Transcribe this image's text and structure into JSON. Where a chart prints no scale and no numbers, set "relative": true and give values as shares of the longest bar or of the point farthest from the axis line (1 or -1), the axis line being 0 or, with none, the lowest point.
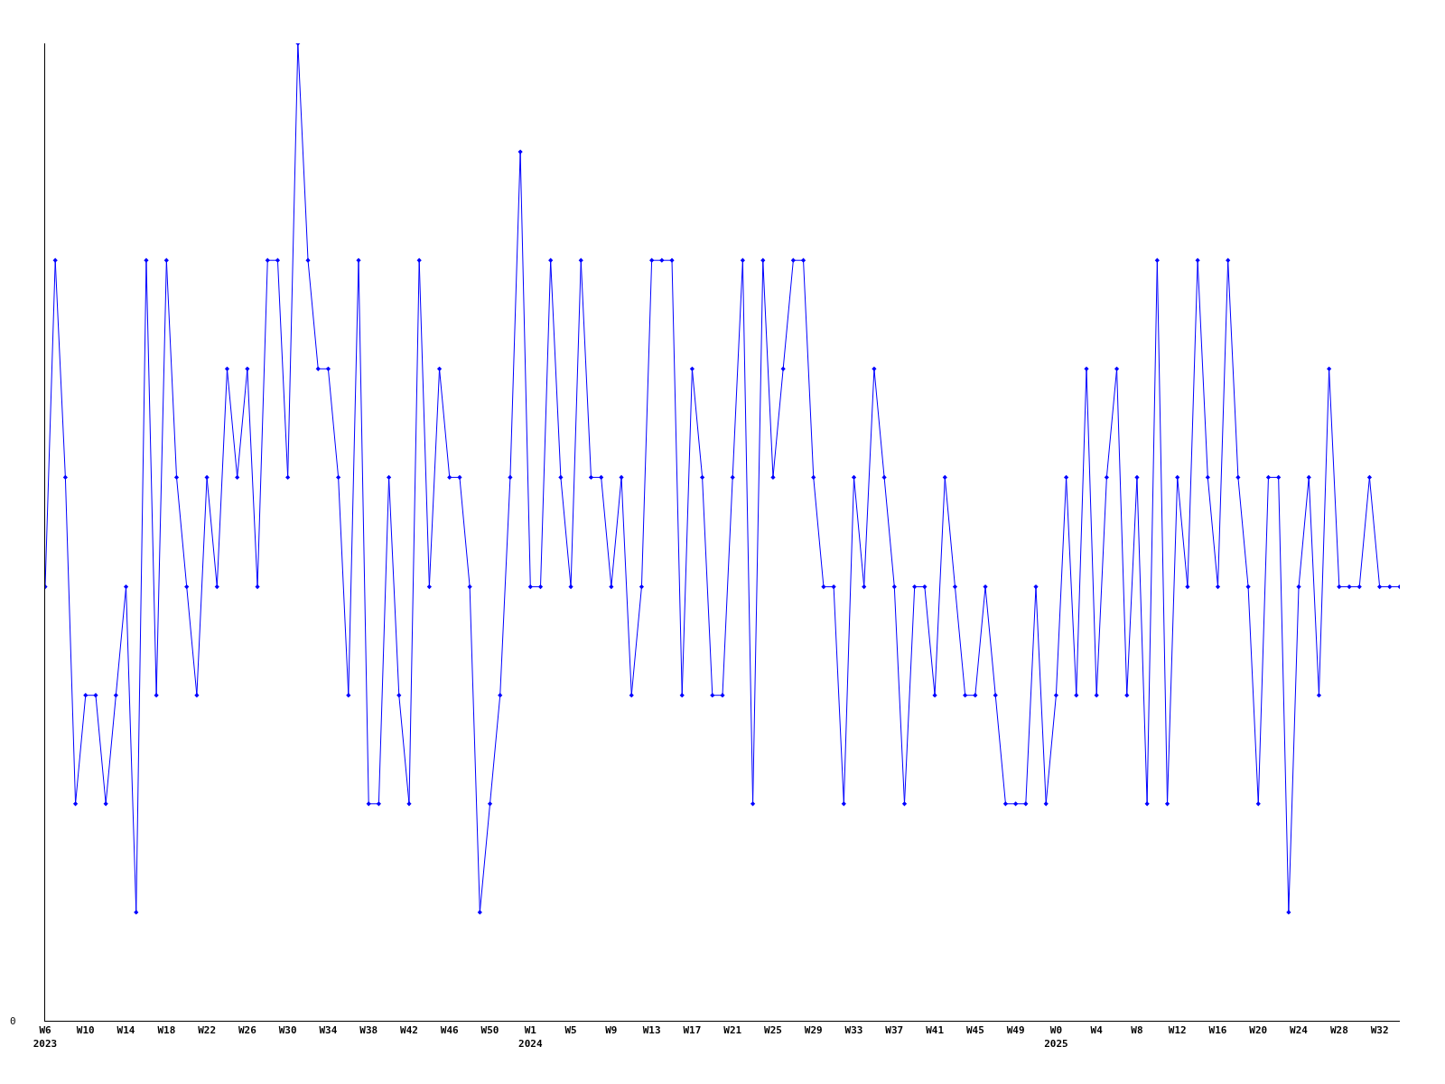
{
  "chart_data": {
    "type": "line",
    "relative": true,
    "marker": "diamond",
    "annotations": [
      "0"
    ],
    "categories": [
      "W6\n2023",
      null,
      null,
      null,
      "W10",
      null,
      null,
      null,
      "W14",
      null,
      null,
      null,
      "W18",
      null,
      null,
      null,
      "W22",
      null,
      null,
      null,
      "W26",
      null,
      null,
      null,
      "W30",
      null,
      null,
      null,
      "W34",
      null,
      null,
      null,
      "W38",
      null,
      null,
      null,
      "W42",
      null,
      null,
      null,
      "W46",
      null,
      null,
      null,
      "W50",
      null,
      null,
      null,
      "W1\n2024",
      null,
      null,
      null,
      "W5",
      null,
      null,
      null,
      "W9",
      null,
      null,
      null,
      "W13",
      null,
      null,
      null,
      "W17",
      null,
      null,
      null,
      "W21",
      null,
      null,
      null,
      "W25",
      null,
      null,
      null,
      "W29",
      null,
      null,
      null,
      "W33",
      null,
      null,
      null,
      "W37",
      null,
      null,
      null,
      "W41",
      null,
      null,
      null,
      "W45",
      null,
      null,
      null,
      "W49",
      null,
      null,
      null,
      "W0\n2025",
      null,
      null,
      null,
      "W4",
      null,
      null,
      null,
      "W8",
      null,
      null,
      null,
      "W12",
      null,
      null,
      null,
      "W16",
      null,
      null,
      null,
      "W20",
      null,
      null,
      null,
      "W24",
      null,
      null,
      null,
      "W28",
      null,
      null,
      null,
      "W32",
      null,
      null
    ],
    "series": [
      {
        "color": "#0000ff",
        "values": [
          0.444,
          0.778,
          0.556,
          0.222,
          0.333,
          0.333,
          0.222,
          0.333,
          0.444,
          0.111,
          0.778,
          0.333,
          0.778,
          0.556,
          0.444,
          0.333,
          0.556,
          0.444,
          0.667,
          0.556,
          0.667,
          0.444,
          0.778,
          0.778,
          0.556,
          1,
          0.778,
          0.667,
          0.667,
          0.556,
          0.333,
          0.778,
          0.222,
          0.222,
          0.556,
          0.333,
          0.222,
          0.778,
          0.444,
          0.667,
          0.556,
          0.556,
          0.444,
          0.111,
          0.222,
          0.333,
          0.556,
          0.889,
          0.444,
          0.444,
          0.778,
          0.556,
          0.444,
          0.778,
          0.556,
          0.556,
          0.444,
          0.556,
          0.333,
          0.444,
          0.778,
          0.778,
          0.778,
          0.333,
          0.667,
          0.556,
          0.333,
          0.333,
          0.556,
          0.778,
          0.222,
          0.778,
          0.556,
          0.667,
          0.778,
          0.778,
          0.556,
          0.444,
          0.444,
          0.222,
          0.556,
          0.444,
          0.667,
          0.556,
          0.444,
          0.222,
          0.444,
          0.444,
          0.333,
          0.556,
          0.444,
          0.333,
          0.333,
          0.444,
          0.333,
          0.222,
          0.222,
          0.222,
          0.444,
          0.222,
          0.333,
          0.556,
          0.333,
          0.667,
          0.333,
          0.556,
          0.667,
          0.333,
          0.556,
          0.222,
          0.778,
          0.222,
          0.556,
          0.444,
          0.778,
          0.556,
          0.444,
          0.778,
          0.556,
          0.444,
          0.222,
          0.556,
          0.556,
          0.111,
          0.444,
          0.556,
          0.333,
          0.667,
          0.444,
          0.444,
          0.444,
          0.556,
          0.444,
          0.444,
          0.444
        ]
      }
    ]
  }
}
